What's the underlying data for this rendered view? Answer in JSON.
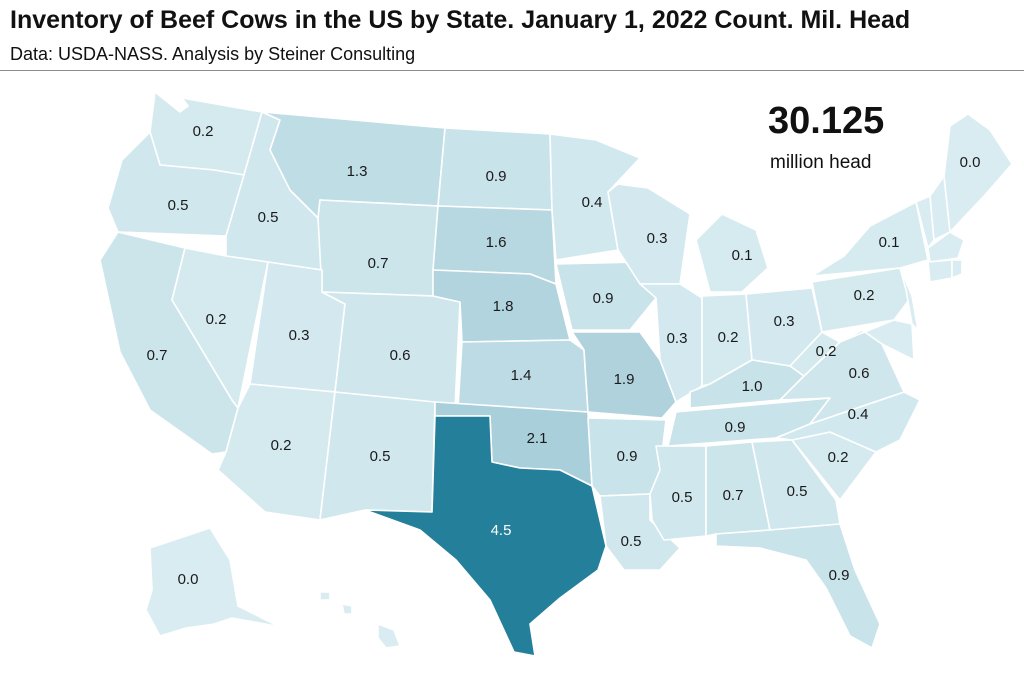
{
  "header": {
    "title": "Inventory of Beef Cows in the US by State.  January 1, 2022 Count.  Mil. Head",
    "subtitle": "Data: USDA-NASS.  Analysis by Steiner Consulting"
  },
  "total": {
    "value": "30.125",
    "unit": "million head"
  },
  "colors": {
    "low": "#d8ecf1",
    "mid": "#a9cfda",
    "high": "#237f9a"
  },
  "chart_data": {
    "type": "choropleth",
    "values": {
      "WA": "0.2",
      "OR": "0.5",
      "CA": "0.7",
      "ID": "0.5",
      "NV": "0.2",
      "MT": "1.3",
      "WY": "0.7",
      "UT": "0.3",
      "AZ": "0.2",
      "CO": "0.6",
      "NM": "0.5",
      "ND": "0.9",
      "SD": "1.6",
      "NE": "1.8",
      "KS": "1.4",
      "OK": "2.1",
      "TX": "4.5",
      "MN": "0.4",
      "IA": "0.9",
      "MO": "1.9",
      "AR": "0.9",
      "LA": "0.5",
      "WI": "0.3",
      "IL": "0.3",
      "MI": "0.1",
      "IN": "0.2",
      "OH": "0.3",
      "KY": "1.0",
      "TN": "0.9",
      "MS": "0.5",
      "AL": "0.7",
      "GA": "0.5",
      "FL": "0.9",
      "SC": "0.2",
      "NC": "0.4",
      "VA": "0.6",
      "WV": "0.2",
      "PA": "0.2",
      "NY": "0.1",
      "ME": "0.0",
      "AK": "0.0"
    }
  }
}
